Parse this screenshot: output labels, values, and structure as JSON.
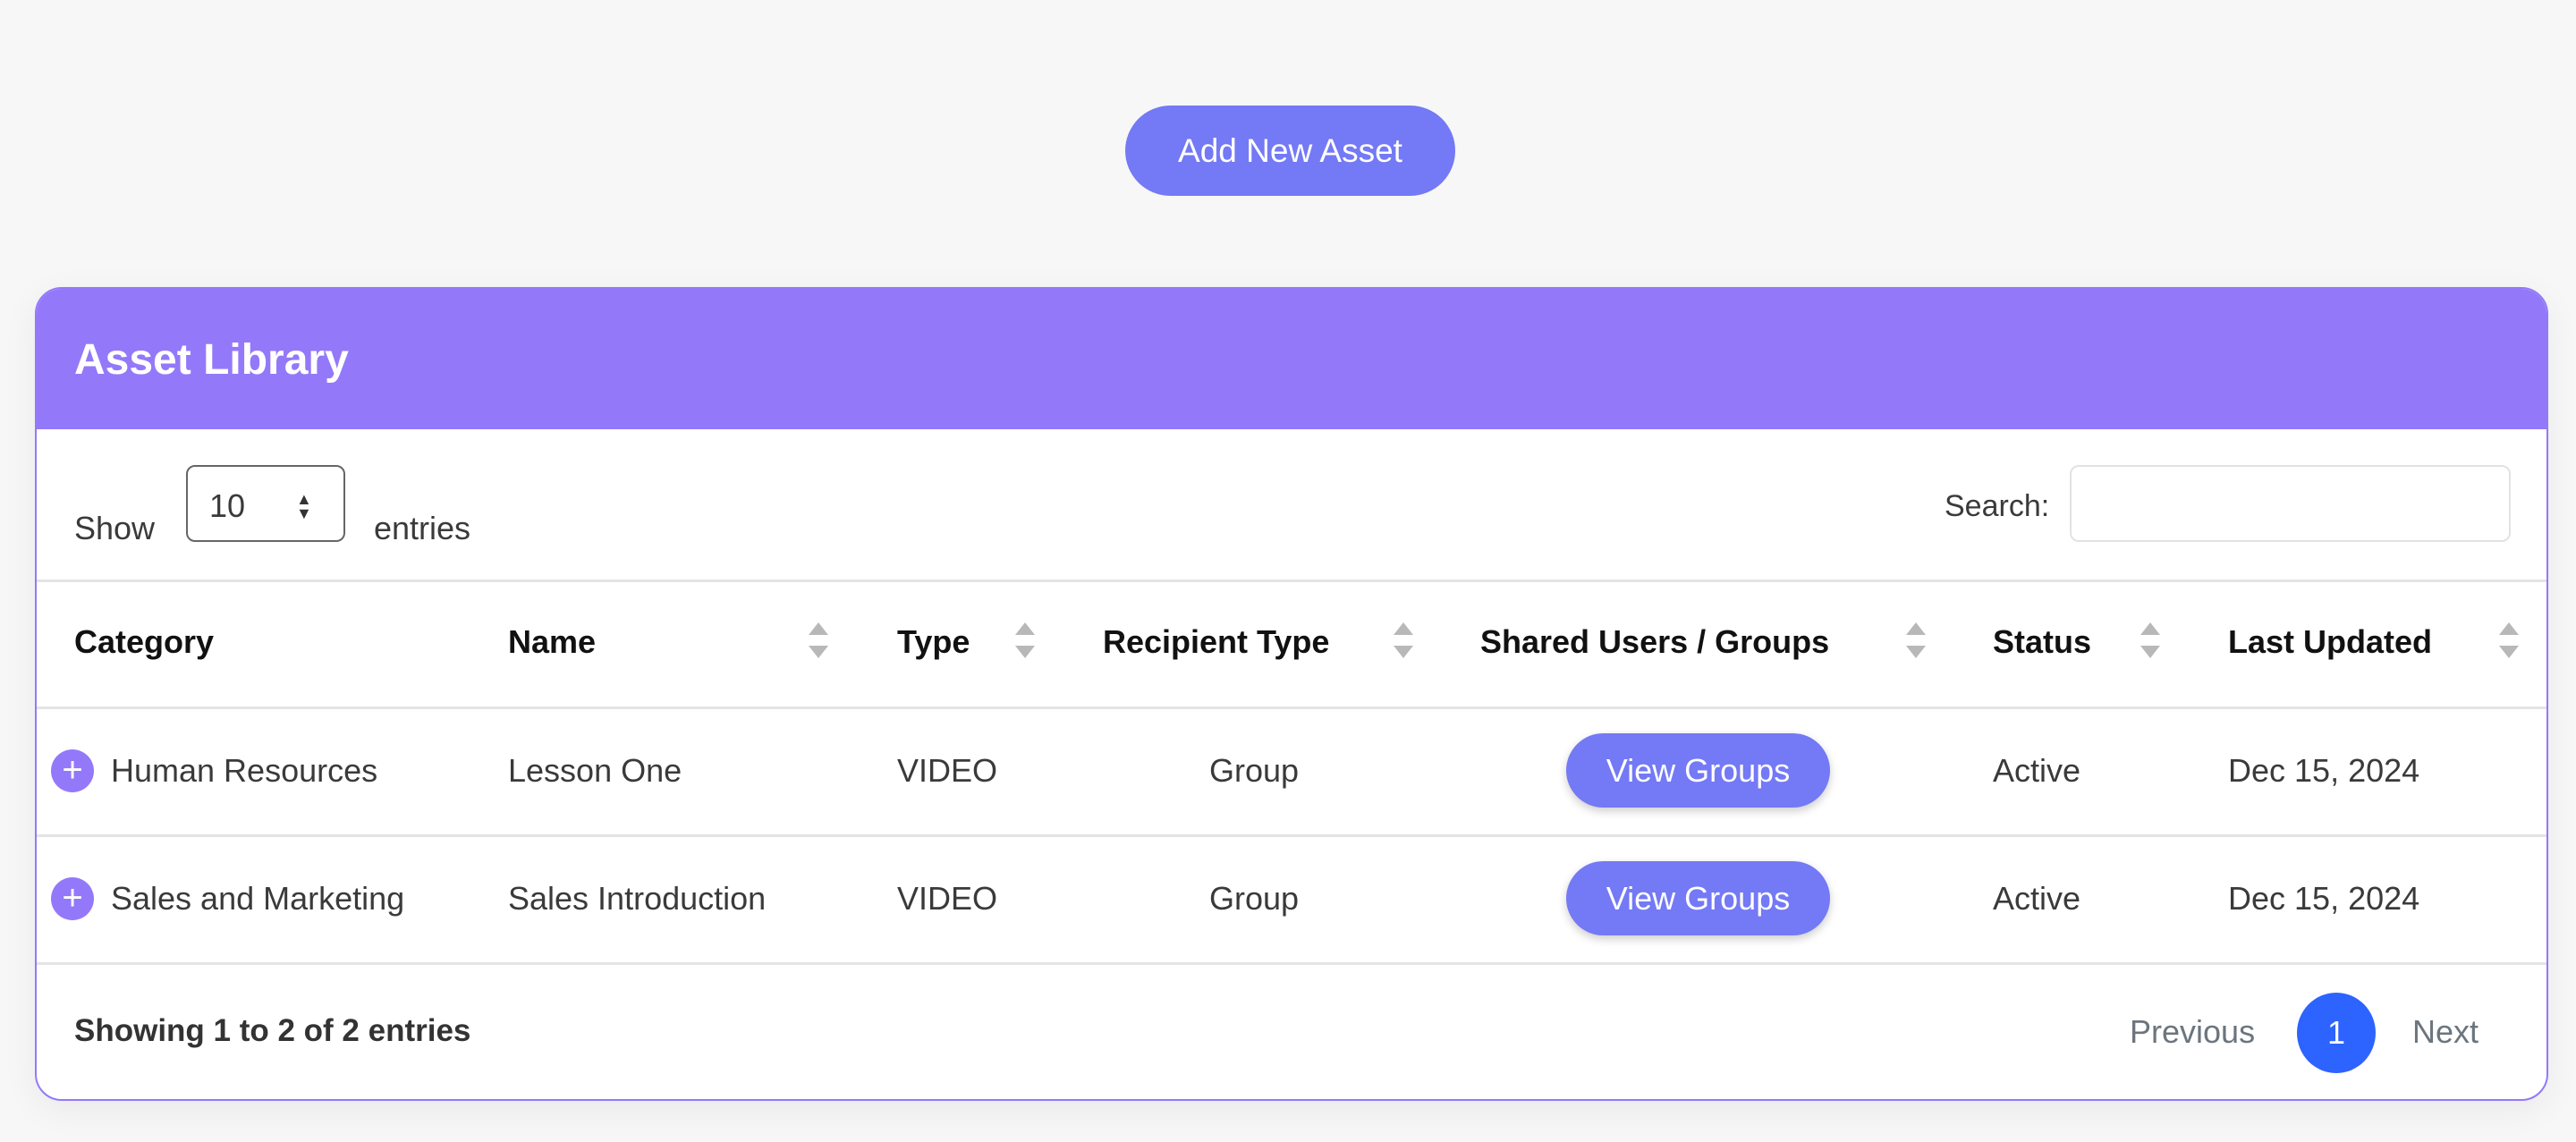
{
  "toolbar": {
    "add_label": "Add New Asset"
  },
  "card": {
    "title": "Asset Library"
  },
  "controls": {
    "show_label": "Show",
    "page_size": "10",
    "entries_label": "entries",
    "search_label": "Search:",
    "search_value": ""
  },
  "columns": [
    "Category",
    "Name",
    "Type",
    "Recipient Type",
    "Shared Users / Groups",
    "Status",
    "Last Updated"
  ],
  "rows": [
    {
      "category": "Human Resources",
      "name": "Lesson One",
      "type": "VIDEO",
      "recipient": "Group",
      "shared": "View Groups",
      "status": "Active",
      "updated": "Dec 15, 2024"
    },
    {
      "category": "Sales and Marketing",
      "name": "Sales Introduction",
      "type": "VIDEO",
      "recipient": "Group",
      "shared": "View Groups",
      "status": "Active",
      "updated": "Dec 15, 2024"
    }
  ],
  "footer": {
    "info": "Showing 1 to 2 of 2 entries",
    "previous": "Previous",
    "page": "1",
    "next": "Next"
  },
  "colors": {
    "accent": "#9379f9",
    "button": "#7479f5",
    "page_active": "#2d63ff"
  }
}
